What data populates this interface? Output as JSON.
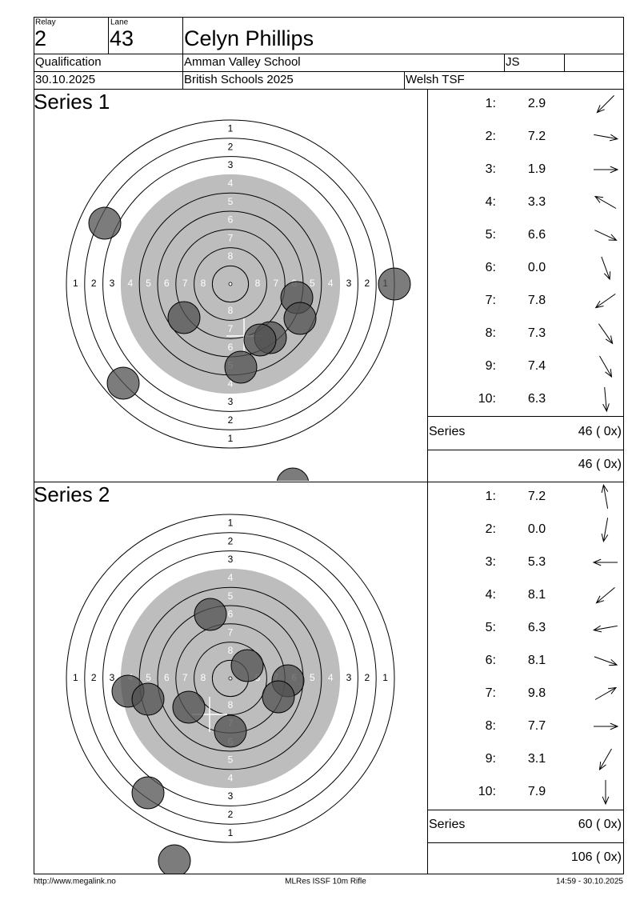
{
  "header": {
    "relay_label": "Relay",
    "relay": "2",
    "lane_label": "Lane",
    "lane": "43",
    "name": "Celyn Phillips",
    "event": "Qualification",
    "school": "Amman Valley School",
    "initials": "JS",
    "date": "30.10.2025",
    "competition": "British Schools 2025",
    "club": "Welsh TSF"
  },
  "target": {
    "ring_labels": [
      "1",
      "2",
      "3",
      "4",
      "5",
      "6",
      "7",
      "8"
    ]
  },
  "series": [
    {
      "title": "Series 1",
      "shots": [
        {
          "number": "1:",
          "score": "2.9"
        },
        {
          "number": "2:",
          "score": "7.2"
        },
        {
          "number": "3:",
          "score": "1.9"
        },
        {
          "number": "4:",
          "score": "3.3"
        },
        {
          "number": "5:",
          "score": "6.6"
        },
        {
          "number": "6:",
          "score": "0.0"
        },
        {
          "number": "7:",
          "score": "7.8"
        },
        {
          "number": "8:",
          "score": "7.3"
        },
        {
          "number": "9:",
          "score": "7.4"
        },
        {
          "number": "10:",
          "score": "6.3"
        }
      ],
      "total_label": "Series",
      "total": "46 ( 0x)",
      "cumulative": "46 ( 0x)"
    },
    {
      "title": "Series 2",
      "shots": [
        {
          "number": "1:",
          "score": "7.2"
        },
        {
          "number": "2:",
          "score": "0.0"
        },
        {
          "number": "3:",
          "score": "5.3"
        },
        {
          "number": "4:",
          "score": "8.1"
        },
        {
          "number": "5:",
          "score": "6.3"
        },
        {
          "number": "6:",
          "score": "8.1"
        },
        {
          "number": "7:",
          "score": "9.8"
        },
        {
          "number": "8:",
          "score": "7.7"
        },
        {
          "number": "9:",
          "score": "3.1"
        },
        {
          "number": "10:",
          "score": "7.9"
        }
      ],
      "total_label": "Series",
      "total": "60 ( 0x)",
      "cumulative": "106 ( 0x)"
    }
  ],
  "footer": {
    "url": "http://www.megalink.no",
    "software": "MLRes ISSF 10m Rifle",
    "timestamp": "14:59 - 30.10.2025"
  }
}
